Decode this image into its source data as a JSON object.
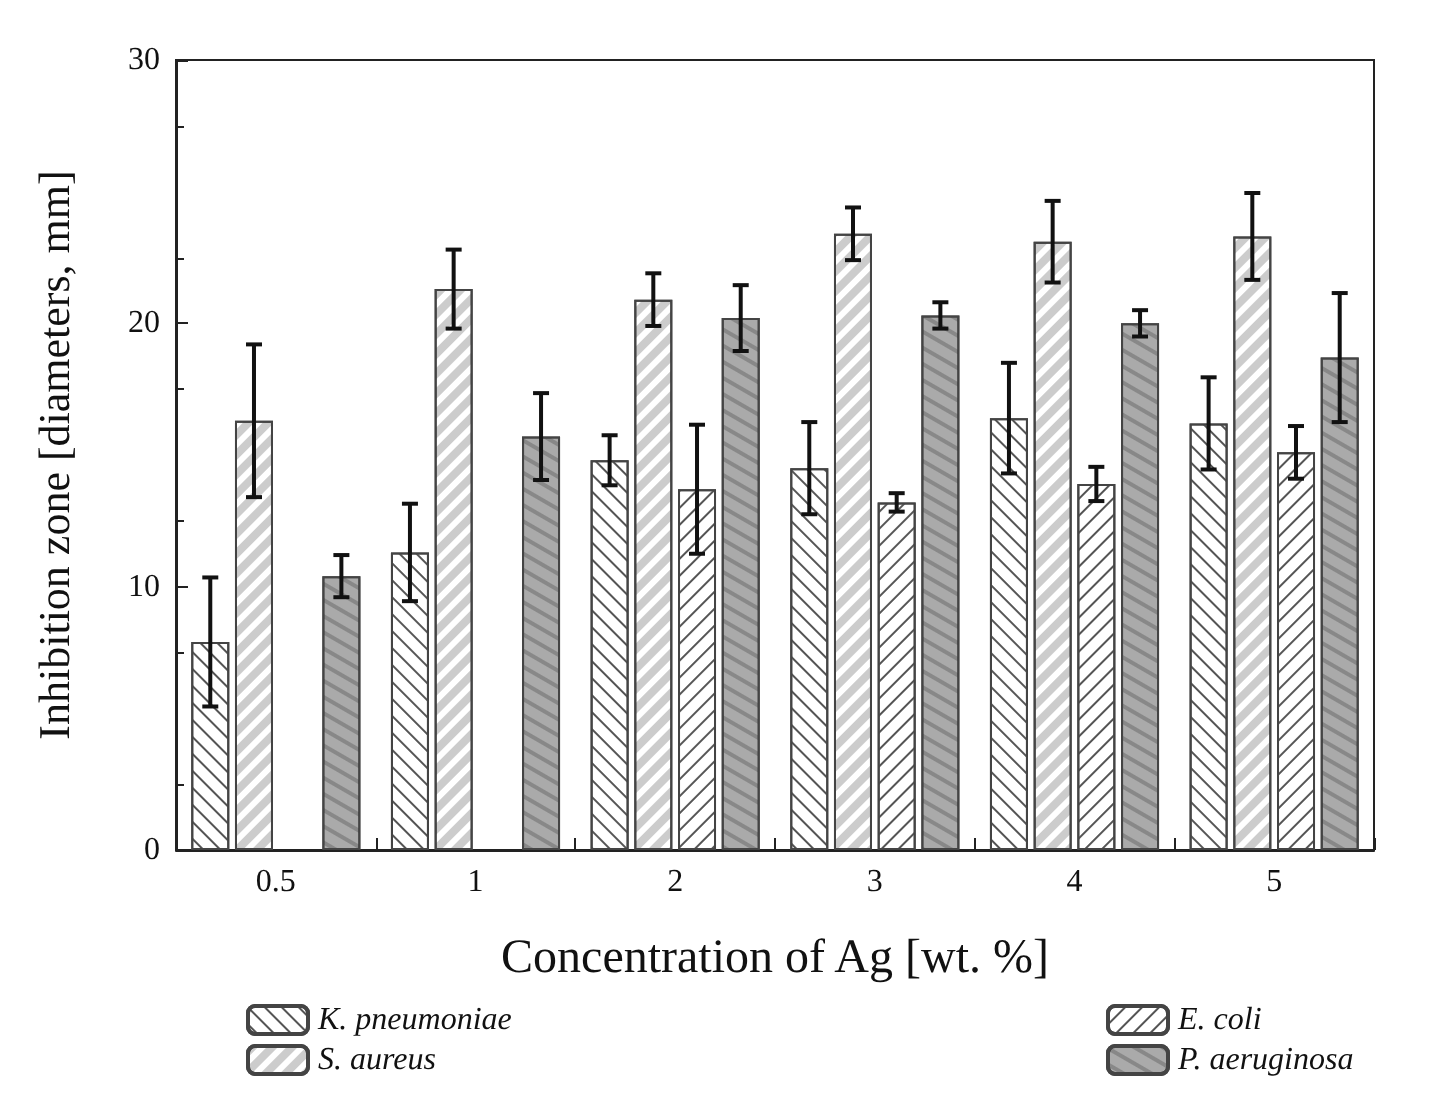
{
  "chart_data": {
    "type": "bar",
    "xlabel": "Concentration of Ag [wt. %]",
    "ylabel": "Inhibition zone [diameters, mm]",
    "categories": [
      "0.5",
      "1",
      "2",
      "3",
      "4",
      "5"
    ],
    "series": [
      {
        "name": "K. pneumoniae",
        "color": "#ffffff",
        "values": [
          7.9,
          11.3,
          14.8,
          14.5,
          16.4,
          16.2
        ],
        "errors": [
          2.45,
          1.85,
          0.95,
          1.75,
          2.1,
          1.75
        ]
      },
      {
        "name": "S. aureus",
        "color": "#ffffff",
        "values": [
          16.3,
          21.3,
          20.9,
          23.4,
          23.1,
          23.3
        ],
        "errors": [
          2.9,
          1.5,
          1.0,
          1.0,
          1.55,
          1.65
        ]
      },
      {
        "name": "E. coli",
        "color": "#ffffff",
        "values": [
          null,
          null,
          13.7,
          13.2,
          13.9,
          15.1
        ],
        "errors": [
          null,
          null,
          2.45,
          0.35,
          0.65,
          1.0
        ]
      },
      {
        "name": "P. aeruginosa",
        "color": "#aaaaaa",
        "values": [
          10.4,
          15.7,
          20.2,
          20.3,
          20.0,
          18.7
        ],
        "errors": [
          0.8,
          1.65,
          1.25,
          0.5,
          0.5,
          2.45
        ]
      }
    ],
    "ylim": [
      0,
      30
    ],
    "yticks": [
      0,
      10,
      20,
      30
    ],
    "grid": false,
    "legend": "bottom"
  }
}
